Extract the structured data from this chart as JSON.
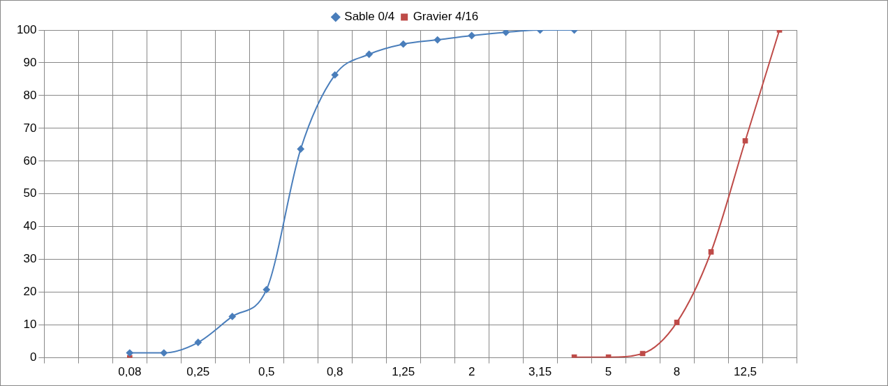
{
  "chart_data": {
    "type": "line",
    "categories": [
      null,
      null,
      "0,08",
      null,
      "0,25",
      null,
      "0,5",
      null,
      "0,8",
      null,
      "1,25",
      null,
      "2",
      null,
      "3,15",
      null,
      "5",
      null,
      "8",
      null,
      "12,5",
      null
    ],
    "series": [
      {
        "name": "Sable 0/4",
        "color": "#4a7ebb",
        "marker": "diamond",
        "values": [
          null,
          null,
          1.5,
          1.5,
          4.7,
          12.6,
          20.8,
          63.7,
          86.3,
          92.6,
          95.7,
          97,
          98.3,
          99.3,
          100,
          100,
          null,
          null,
          null,
          null,
          null,
          null
        ]
      },
      {
        "name": "Gravier 4/16",
        "color": "#be4b48",
        "marker": "square",
        "values": [
          null,
          null,
          0,
          null,
          null,
          null,
          null,
          null,
          null,
          null,
          null,
          null,
          null,
          null,
          null,
          0.2,
          0.2,
          1.3,
          10.8,
          32.3,
          66.2,
          100
        ]
      }
    ],
    "ylim": [
      0,
      100
    ],
    "yticks": [
      0,
      10,
      20,
      30,
      40,
      50,
      60,
      70,
      80,
      90,
      100
    ],
    "grid": true,
    "legend": "top",
    "line_style": "solid"
  }
}
